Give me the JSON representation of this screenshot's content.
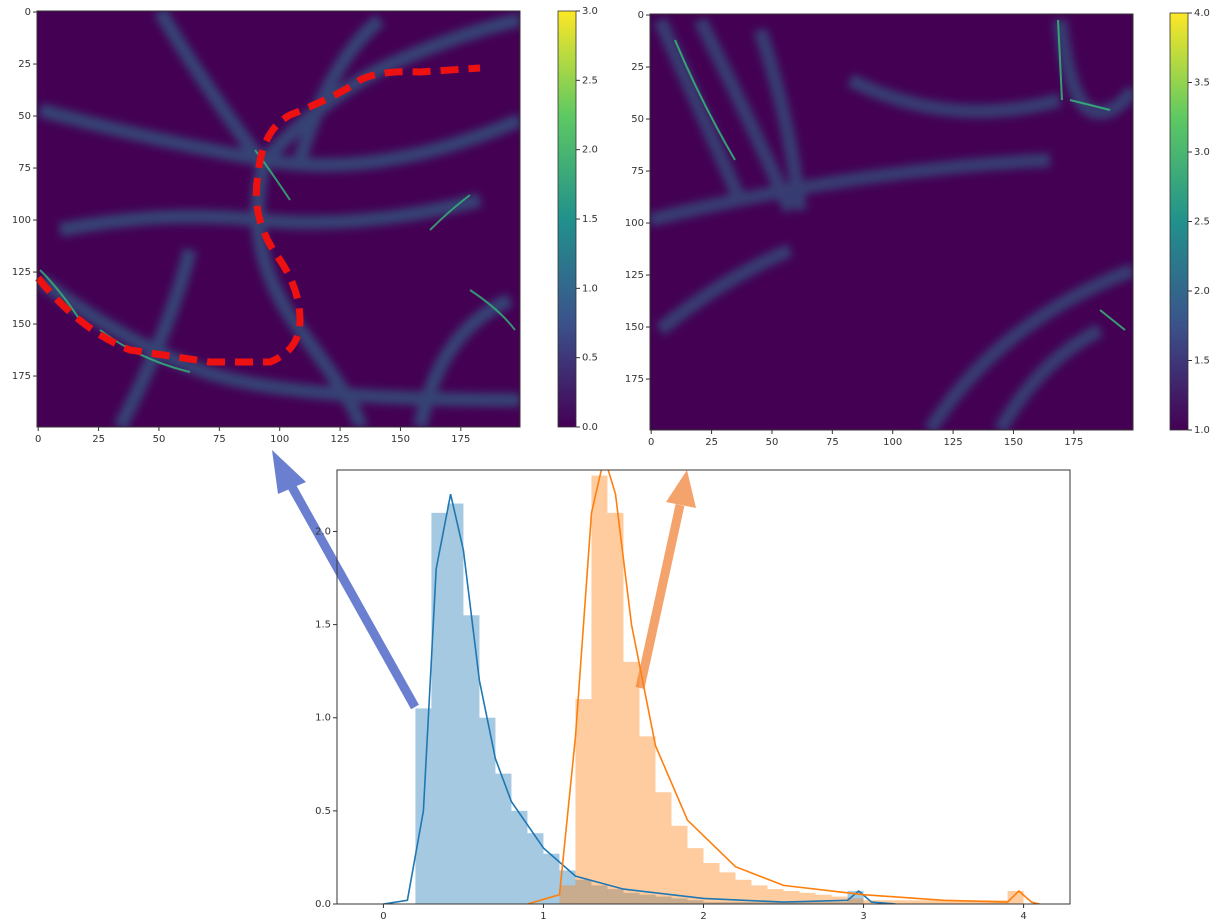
{
  "chart_data": [
    {
      "type": "heatmap",
      "xlim": [
        -0.5,
        199.5
      ],
      "ylim": [
        -0.5,
        199.5
      ],
      "y_inverted": true,
      "xticks": [
        0,
        25,
        50,
        75,
        100,
        125,
        150,
        175
      ],
      "yticks": [
        0,
        25,
        50,
        75,
        100,
        125,
        150,
        175
      ],
      "colormap": [
        "#440154",
        "#3b528b",
        "#21918c",
        "#5ec962",
        "#fde725"
      ],
      "colorbar": {
        "lim": [
          0,
          3
        ],
        "ticks": [
          {
            "value": 0,
            "label": "0.0"
          },
          {
            "value": 0.5,
            "label": "0.5"
          },
          {
            "value": 1,
            "label": "1.0"
          },
          {
            "value": 1.5,
            "label": "1.5"
          },
          {
            "value": 2,
            "label": "2.0"
          },
          {
            "value": 2.5,
            "label": "2.5"
          },
          {
            "value": 3,
            "label": "3.0"
          }
        ]
      }
    },
    {
      "type": "heatmap",
      "xlim": [
        -0.5,
        199.5
      ],
      "ylim": [
        -0.5,
        199.5
      ],
      "y_inverted": true,
      "xticks": [
        0,
        25,
        50,
        75,
        100,
        125,
        150,
        175
      ],
      "yticks": [
        0,
        25,
        50,
        75,
        100,
        125,
        150,
        175
      ],
      "colormap": [
        "#440154",
        "#3b528b",
        "#21918c",
        "#5ec962",
        "#fde725"
      ],
      "colorbar": {
        "lim": [
          1,
          4
        ],
        "ticks": [
          {
            "value": 1,
            "label": "1.0"
          },
          {
            "value": 1.5,
            "label": "1.5"
          },
          {
            "value": 2,
            "label": "2.0"
          },
          {
            "value": 2.5,
            "label": "2.5"
          },
          {
            "value": 3,
            "label": "3.0"
          },
          {
            "value": 3.5,
            "label": "3.5"
          },
          {
            "value": 4,
            "label": "4.0"
          }
        ]
      }
    },
    {
      "type": "histogram",
      "xlim": [
        -0.29,
        4.29
      ],
      "ylim": [
        0,
        2.33
      ],
      "xticks": [
        0,
        1,
        2,
        3,
        4
      ],
      "yticks": [
        {
          "value": 0,
          "label": "0.0"
        },
        {
          "value": 0.5,
          "label": "0.5"
        },
        {
          "value": 1,
          "label": "1.0"
        },
        {
          "value": 1.5,
          "label": "1.5"
        },
        {
          "value": 2,
          "label": "2.0"
        }
      ],
      "series": [
        {
          "color": "#1f77b4",
          "bins": [
            0.2,
            0.3,
            0.4,
            0.5,
            0.6,
            0.7,
            0.8,
            0.9,
            1.0,
            1.1,
            1.2,
            1.3,
            1.4,
            1.5,
            1.6,
            1.7,
            1.8,
            1.9,
            2.0,
            2.9,
            3.0
          ],
          "values": [
            1.05,
            2.1,
            2.15,
            1.55,
            1.0,
            0.7,
            0.5,
            0.38,
            0.27,
            0.18,
            0.13,
            0.1,
            0.08,
            0.06,
            0.05,
            0.04,
            0.03,
            0.02,
            0.01,
            0.07
          ],
          "kde_x": [
            0,
            0.15,
            0.25,
            0.33,
            0.42,
            0.5,
            0.6,
            0.7,
            0.8,
            1.0,
            1.2,
            1.5,
            2.0,
            2.5,
            2.9,
            2.97,
            3.05,
            3.2
          ],
          "kde_values": [
            0,
            0.02,
            0.5,
            1.8,
            2.2,
            1.9,
            1.2,
            0.78,
            0.55,
            0.3,
            0.15,
            0.08,
            0.03,
            0.01,
            0.02,
            0.07,
            0.01,
            0
          ]
        },
        {
          "color": "#ff7f0e",
          "bins": [
            1.1,
            1.2,
            1.3,
            1.4,
            1.5,
            1.6,
            1.7,
            1.8,
            1.9,
            2.0,
            2.1,
            2.2,
            2.3,
            2.4,
            2.5,
            2.6,
            2.7,
            2.8,
            2.9,
            3.0,
            3.9,
            4.0
          ],
          "values": [
            0.1,
            1.1,
            2.3,
            2.1,
            1.3,
            0.9,
            0.6,
            0.42,
            0.3,
            0.22,
            0.17,
            0.13,
            0.1,
            0.08,
            0.07,
            0.06,
            0.05,
            0.04,
            0.03,
            0.02,
            0.07
          ],
          "kde_x": [
            0.9,
            1.1,
            1.2,
            1.3,
            1.38,
            1.45,
            1.55,
            1.7,
            1.9,
            2.2,
            2.5,
            3.0,
            3.5,
            3.9,
            3.97,
            4.05,
            4.1
          ],
          "kde_values": [
            0,
            0.05,
            0.9,
            2.1,
            2.4,
            2.2,
            1.5,
            0.85,
            0.45,
            0.2,
            0.1,
            0.05,
            0.02,
            0.01,
            0.07,
            0.01,
            0
          ]
        }
      ]
    }
  ]
}
